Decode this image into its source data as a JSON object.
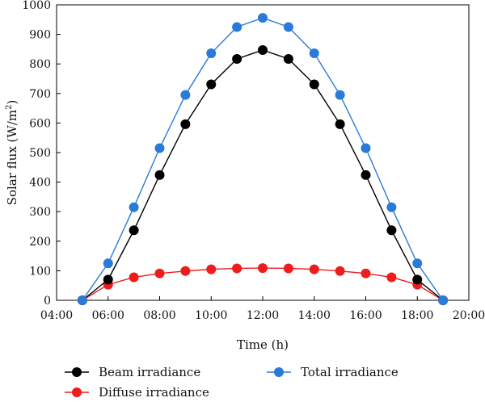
{
  "chart_data": {
    "type": "line",
    "xlabel": "Time (h)",
    "ylabel_main": "Solar flux (W/m",
    "ylabel_sup": "2",
    "ylabel_close": ")",
    "xlim": [
      4,
      20
    ],
    "ylim": [
      0,
      1000
    ],
    "x_ticks": [
      4,
      6,
      8,
      10,
      12,
      14,
      16,
      18,
      20
    ],
    "x_tick_labels": [
      "04:00",
      "06:00",
      "08:00",
      "10:00",
      "12:00",
      "14:00",
      "16:00",
      "18:00",
      "20:00"
    ],
    "y_ticks": [
      0,
      100,
      200,
      300,
      400,
      500,
      600,
      700,
      800,
      900,
      1000
    ],
    "y_tick_labels": [
      "0",
      "100",
      "200",
      "300",
      "400",
      "500",
      "600",
      "700",
      "800",
      "900",
      "1000"
    ],
    "x": [
      5,
      6,
      7,
      8,
      9,
      10,
      11,
      12,
      13,
      14,
      15,
      16,
      17,
      18,
      19
    ],
    "series": [
      {
        "name": "Beam irradiance",
        "color": "#000000",
        "values": [
          0,
          70,
          237,
          424,
          596,
          731,
          817,
          847,
          817,
          731,
          596,
          424,
          237,
          70,
          0
        ]
      },
      {
        "name": "Diffuse irradiance",
        "color": "#ee1c1c",
        "values": [
          0,
          53,
          78,
          91,
          99,
          105,
          108,
          109,
          108,
          105,
          99,
          91,
          78,
          53,
          0
        ]
      },
      {
        "name": "Total irradiance",
        "color": "#2a7ad8",
        "values": [
          0,
          125,
          315,
          515,
          695,
          836,
          925,
          956,
          925,
          836,
          695,
          515,
          315,
          125,
          0
        ]
      }
    ],
    "legend_position": "bottom",
    "grid": false
  }
}
